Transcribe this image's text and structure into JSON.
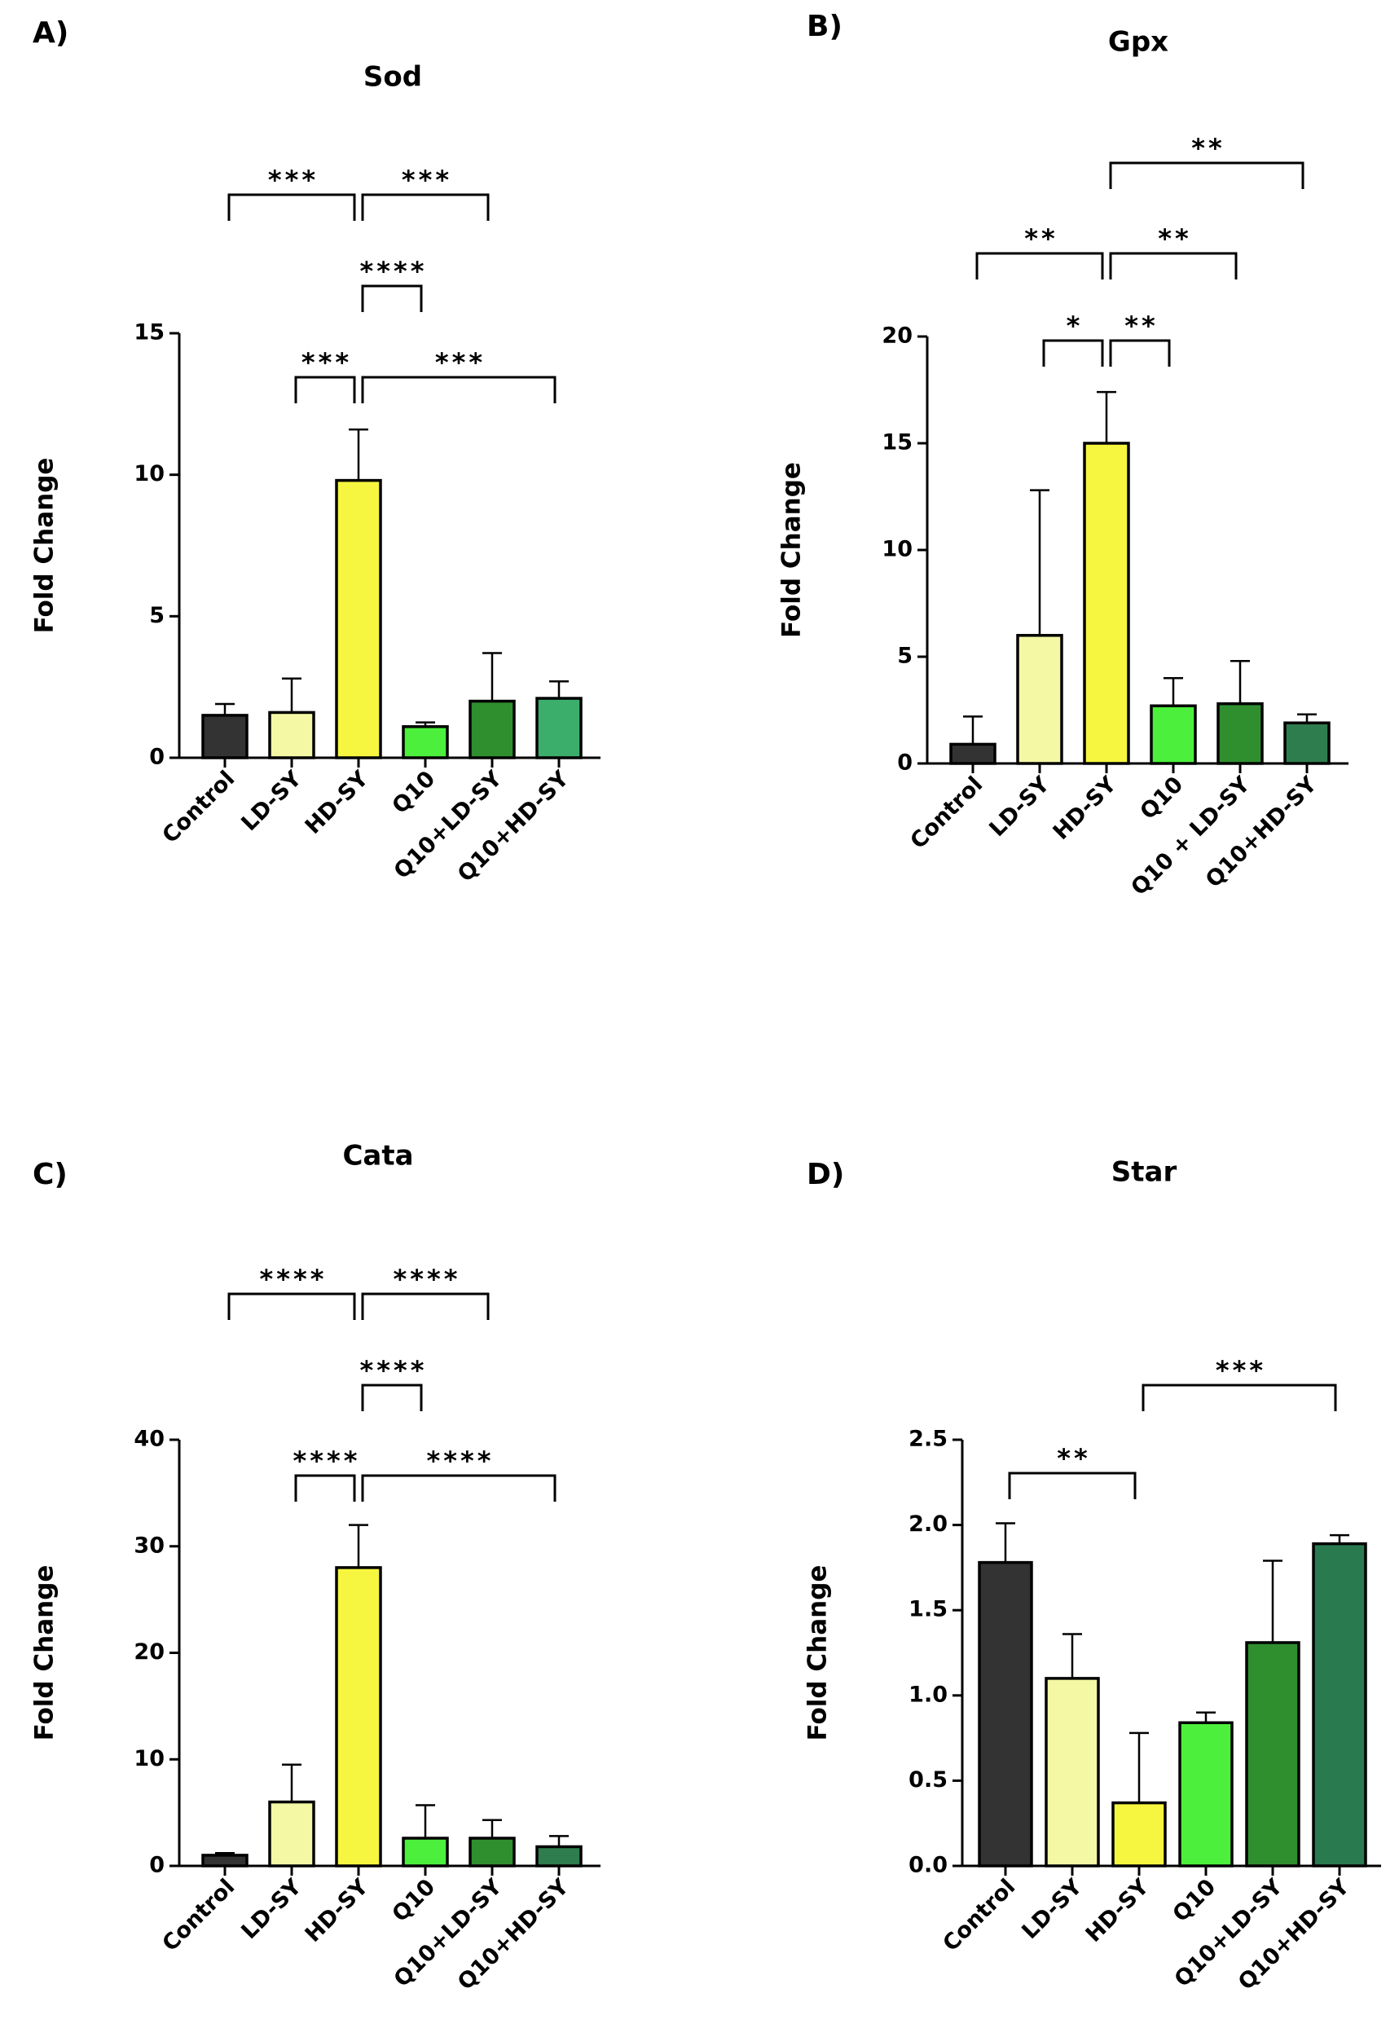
{
  "chart_data": [
    {
      "type": "bar",
      "panel": "A)",
      "title": "Sod",
      "y_label": "Fold Change",
      "categories": [
        "Control",
        "LD-SY",
        "HD-SY",
        "Q10",
        "Q10+LD-SY",
        "Q10+HD-SY"
      ],
      "values": [
        1.5,
        1.6,
        9.8,
        1.1,
        2.0,
        2.1
      ],
      "errors": [
        0.4,
        1.2,
        1.8,
        0.15,
        1.7,
        0.6
      ],
      "colors": [
        "#333333",
        "#f4f8a4",
        "#f6f640",
        "#4cf03c",
        "#2f8f2f",
        "#3cae6c"
      ],
      "ylim": [
        0,
        15
      ],
      "yticks": [
        0,
        5,
        10,
        15
      ],
      "brackets": [
        {
          "from": 0,
          "to": 2,
          "label": "***"
        },
        {
          "from": 2,
          "to": 4,
          "label": "***"
        },
        {
          "from": 2,
          "to": 3,
          "label": "****"
        },
        {
          "from": 1,
          "to": 2,
          "label": "***"
        },
        {
          "from": 2,
          "to": 5,
          "label": "***"
        }
      ]
    },
    {
      "type": "bar",
      "panel": "B)",
      "title": "Gpx",
      "y_label": "Fold Change",
      "categories": [
        "Control",
        "LD-SY",
        "HD-SY",
        "Q10",
        "Q10 + LD-SY",
        "Q10+HD-SY"
      ],
      "values": [
        0.9,
        6.0,
        15.0,
        2.7,
        2.8,
        1.9
      ],
      "errors": [
        1.3,
        6.8,
        2.4,
        1.3,
        2.0,
        0.4
      ],
      "colors": [
        "#333333",
        "#f4f8a4",
        "#f6f640",
        "#4cf03c",
        "#2f8f2f",
        "#2e7d4e"
      ],
      "ylim": [
        0,
        20
      ],
      "yticks": [
        0,
        5,
        10,
        15,
        20
      ],
      "brackets": [
        {
          "from": 2,
          "to": 5,
          "label": "**"
        },
        {
          "from": 0,
          "to": 2,
          "label": "**"
        },
        {
          "from": 2,
          "to": 4,
          "label": "**"
        },
        {
          "from": 1,
          "to": 2,
          "label": "*"
        },
        {
          "from": 2,
          "to": 3,
          "label": "**"
        }
      ]
    },
    {
      "type": "bar",
      "panel": "C)",
      "title": "Cata",
      "y_label": "Fold Change",
      "categories": [
        "Control",
        "LD-SY",
        "HD-SY",
        "Q10",
        "Q10+LD-SY",
        "Q10+HD-SY"
      ],
      "values": [
        1.0,
        6.0,
        28.0,
        2.6,
        2.6,
        1.8
      ],
      "errors": [
        0.2,
        3.5,
        4.0,
        3.1,
        1.7,
        1.0
      ],
      "colors": [
        "#333333",
        "#f4f8a4",
        "#f6f640",
        "#4cf03c",
        "#2f8f2f",
        "#2e7d4e"
      ],
      "ylim": [
        0,
        40
      ],
      "yticks": [
        0,
        10,
        20,
        30,
        40
      ],
      "brackets": [
        {
          "from": 0,
          "to": 2,
          "label": "****"
        },
        {
          "from": 2,
          "to": 4,
          "label": "****"
        },
        {
          "from": 2,
          "to": 3,
          "label": "****"
        },
        {
          "from": 1,
          "to": 2,
          "label": "****"
        },
        {
          "from": 2,
          "to": 5,
          "label": "****"
        }
      ]
    },
    {
      "type": "bar",
      "panel": "D)",
      "title": "Star",
      "y_label": "Fold Change",
      "categories": [
        "Control",
        "LD-SY",
        "HD-SY",
        "Q10",
        "Q10+LD-SY",
        "Q10+HD-SY"
      ],
      "values": [
        1.78,
        1.1,
        0.37,
        0.84,
        1.31,
        1.89
      ],
      "errors": [
        0.23,
        0.26,
        0.41,
        0.06,
        0.48,
        0.05
      ],
      "colors": [
        "#333333",
        "#f4f8a4",
        "#f6f640",
        "#4cf03c",
        "#2f8f2f",
        "#2a7a50"
      ],
      "ylim": [
        0,
        2.5
      ],
      "yticks": [
        {
          "value": 0,
          "label": "0.0"
        },
        0.5,
        {
          "value": 1,
          "label": "1.0"
        },
        1.5,
        {
          "value": 2,
          "label": "2.0"
        },
        2.5
      ],
      "brackets": [
        {
          "from": 2,
          "to": 5,
          "label": "***"
        },
        {
          "from": 0,
          "to": 2,
          "label": "**"
        }
      ]
    }
  ]
}
